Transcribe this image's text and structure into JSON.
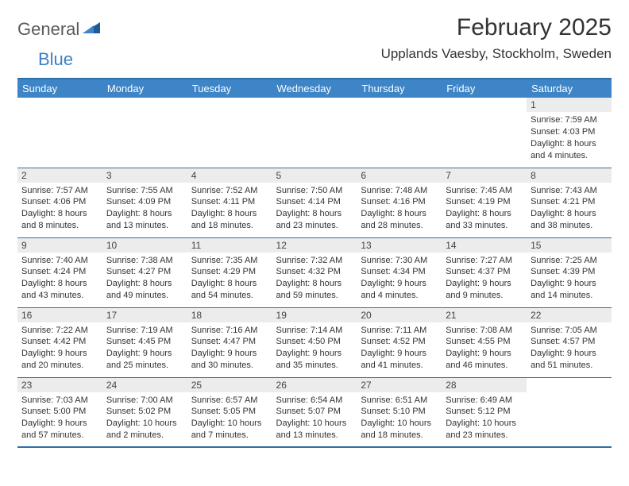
{
  "brand": {
    "first": "General",
    "second": "Blue"
  },
  "title": "February 2025",
  "location": "Upplands Vaesby, Stockholm, Sweden",
  "colors": {
    "header_bg": "#3d85c6",
    "header_text": "#ffffff",
    "border": "#2f6fa7",
    "daynum_bg": "#ececec",
    "text": "#333333",
    "logo_gray": "#5a5a5a",
    "logo_blue": "#3b7fc4"
  },
  "dayHeaders": [
    "Sunday",
    "Monday",
    "Tuesday",
    "Wednesday",
    "Thursday",
    "Friday",
    "Saturday"
  ],
  "weeks": [
    [
      null,
      null,
      null,
      null,
      null,
      null,
      {
        "d": "1",
        "sr": "7:59 AM",
        "ss": "4:03 PM",
        "dl": "8 hours and 4 minutes."
      }
    ],
    [
      {
        "d": "2",
        "sr": "7:57 AM",
        "ss": "4:06 PM",
        "dl": "8 hours and 8 minutes."
      },
      {
        "d": "3",
        "sr": "7:55 AM",
        "ss": "4:09 PM",
        "dl": "8 hours and 13 minutes."
      },
      {
        "d": "4",
        "sr": "7:52 AM",
        "ss": "4:11 PM",
        "dl": "8 hours and 18 minutes."
      },
      {
        "d": "5",
        "sr": "7:50 AM",
        "ss": "4:14 PM",
        "dl": "8 hours and 23 minutes."
      },
      {
        "d": "6",
        "sr": "7:48 AM",
        "ss": "4:16 PM",
        "dl": "8 hours and 28 minutes."
      },
      {
        "d": "7",
        "sr": "7:45 AM",
        "ss": "4:19 PM",
        "dl": "8 hours and 33 minutes."
      },
      {
        "d": "8",
        "sr": "7:43 AM",
        "ss": "4:21 PM",
        "dl": "8 hours and 38 minutes."
      }
    ],
    [
      {
        "d": "9",
        "sr": "7:40 AM",
        "ss": "4:24 PM",
        "dl": "8 hours and 43 minutes."
      },
      {
        "d": "10",
        "sr": "7:38 AM",
        "ss": "4:27 PM",
        "dl": "8 hours and 49 minutes."
      },
      {
        "d": "11",
        "sr": "7:35 AM",
        "ss": "4:29 PM",
        "dl": "8 hours and 54 minutes."
      },
      {
        "d": "12",
        "sr": "7:32 AM",
        "ss": "4:32 PM",
        "dl": "8 hours and 59 minutes."
      },
      {
        "d": "13",
        "sr": "7:30 AM",
        "ss": "4:34 PM",
        "dl": "9 hours and 4 minutes."
      },
      {
        "d": "14",
        "sr": "7:27 AM",
        "ss": "4:37 PM",
        "dl": "9 hours and 9 minutes."
      },
      {
        "d": "15",
        "sr": "7:25 AM",
        "ss": "4:39 PM",
        "dl": "9 hours and 14 minutes."
      }
    ],
    [
      {
        "d": "16",
        "sr": "7:22 AM",
        "ss": "4:42 PM",
        "dl": "9 hours and 20 minutes."
      },
      {
        "d": "17",
        "sr": "7:19 AM",
        "ss": "4:45 PM",
        "dl": "9 hours and 25 minutes."
      },
      {
        "d": "18",
        "sr": "7:16 AM",
        "ss": "4:47 PM",
        "dl": "9 hours and 30 minutes."
      },
      {
        "d": "19",
        "sr": "7:14 AM",
        "ss": "4:50 PM",
        "dl": "9 hours and 35 minutes."
      },
      {
        "d": "20",
        "sr": "7:11 AM",
        "ss": "4:52 PM",
        "dl": "9 hours and 41 minutes."
      },
      {
        "d": "21",
        "sr": "7:08 AM",
        "ss": "4:55 PM",
        "dl": "9 hours and 46 minutes."
      },
      {
        "d": "22",
        "sr": "7:05 AM",
        "ss": "4:57 PM",
        "dl": "9 hours and 51 minutes."
      }
    ],
    [
      {
        "d": "23",
        "sr": "7:03 AM",
        "ss": "5:00 PM",
        "dl": "9 hours and 57 minutes."
      },
      {
        "d": "24",
        "sr": "7:00 AM",
        "ss": "5:02 PM",
        "dl": "10 hours and 2 minutes."
      },
      {
        "d": "25",
        "sr": "6:57 AM",
        "ss": "5:05 PM",
        "dl": "10 hours and 7 minutes."
      },
      {
        "d": "26",
        "sr": "6:54 AM",
        "ss": "5:07 PM",
        "dl": "10 hours and 13 minutes."
      },
      {
        "d": "27",
        "sr": "6:51 AM",
        "ss": "5:10 PM",
        "dl": "10 hours and 18 minutes."
      },
      {
        "d": "28",
        "sr": "6:49 AM",
        "ss": "5:12 PM",
        "dl": "10 hours and 23 minutes."
      },
      null
    ]
  ],
  "labels": {
    "sunrise": "Sunrise:",
    "sunset": "Sunset:",
    "daylight": "Daylight:"
  }
}
